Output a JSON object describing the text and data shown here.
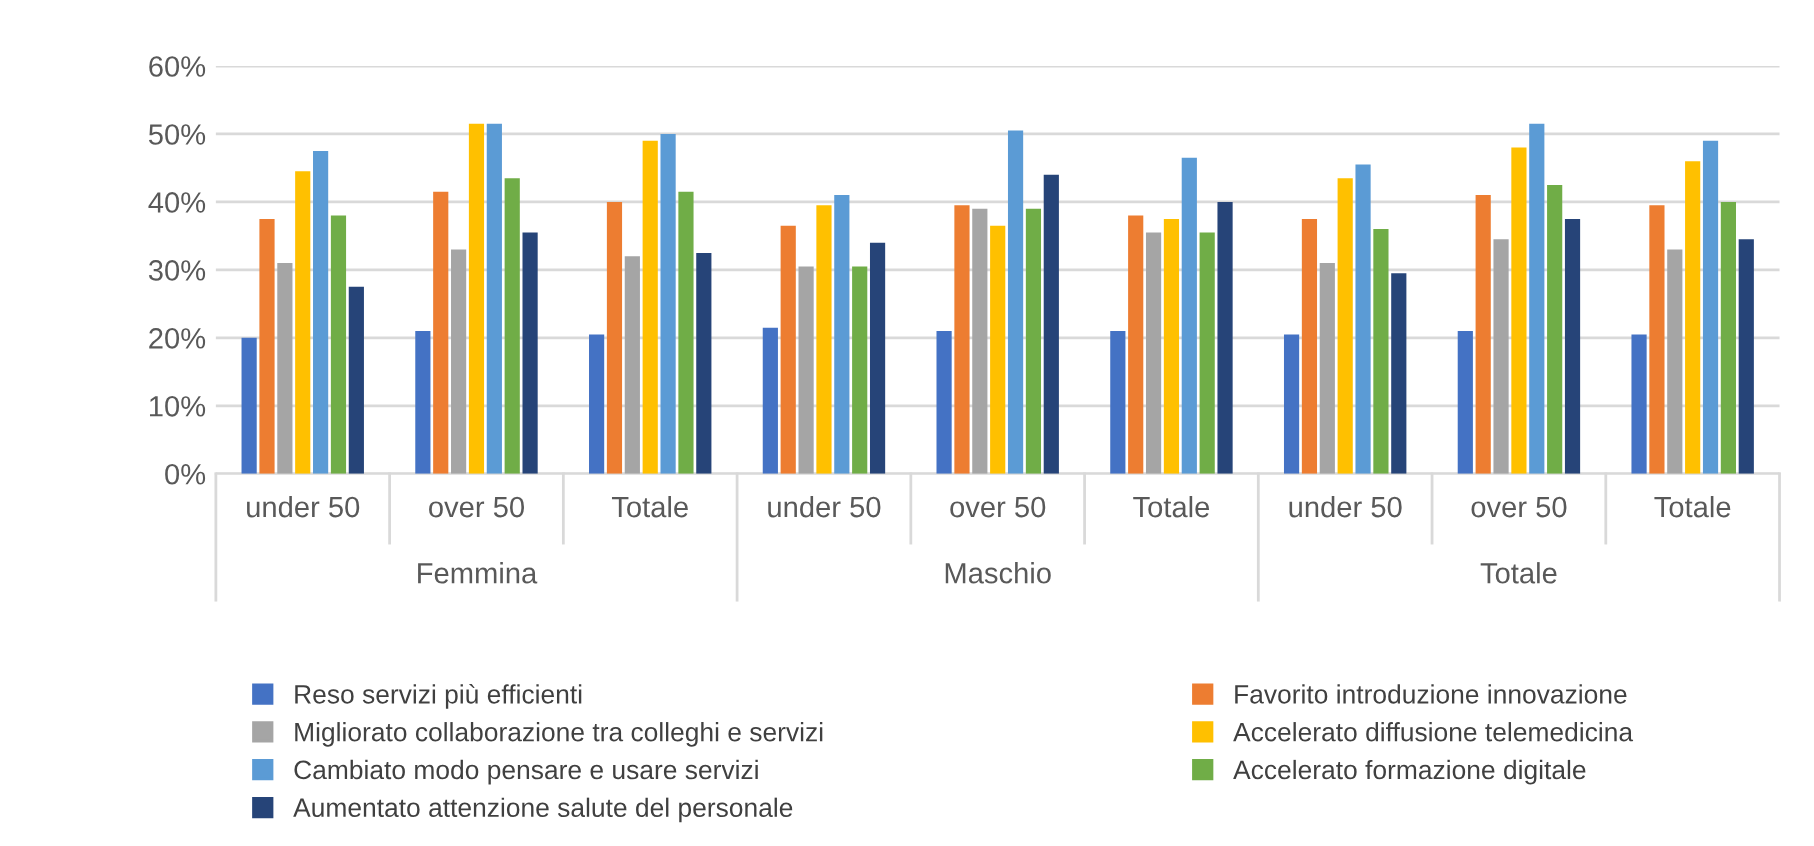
{
  "chart_data": {
    "type": "bar",
    "categories": [
      "under 50",
      "over 50",
      "Totale",
      "under 50",
      "over 50",
      "Totale",
      "under 50",
      "over 50",
      "Totale"
    ],
    "annotations": [
      "Femmina",
      "Maschio",
      "Totale"
    ],
    "series": [
      {
        "name": "Reso servizi più efficienti",
        "color": "#4472c4",
        "values": [
          20,
          21,
          20.5,
          21.5,
          21,
          21,
          20.5,
          21,
          20.5
        ]
      },
      {
        "name": "Favorito introduzione innovazione",
        "color": "#ed7d31",
        "values": [
          37.5,
          41.5,
          40,
          36.5,
          39.5,
          38,
          37.5,
          41,
          39.5
        ]
      },
      {
        "name": "Migliorato collaborazione tra colleghi e servizi",
        "color": "#a5a5a5",
        "values": [
          31,
          33,
          32,
          30.5,
          39,
          35.5,
          31,
          34.5,
          33
        ]
      },
      {
        "name": "Accelerato diffusione telemedicina",
        "color": "#ffc000",
        "values": [
          44.5,
          51.5,
          49,
          39.5,
          36.5,
          37.5,
          43.5,
          48,
          46
        ]
      },
      {
        "name": "Cambiato modo pensare e usare servizi",
        "color": "#5b9bd5",
        "values": [
          47.5,
          51.5,
          50,
          41,
          50.5,
          46.5,
          45.5,
          51.5,
          49
        ]
      },
      {
        "name": "Accelerato formazione digitale",
        "color": "#70ad47",
        "values": [
          38,
          43.5,
          41.5,
          30.5,
          39,
          35.5,
          36,
          42.5,
          40
        ]
      },
      {
        "name": "Aumentato attenzione salute del personale",
        "color": "#264478",
        "values": [
          27.5,
          35.5,
          32.5,
          34,
          44,
          40,
          29.5,
          37.5,
          34.5
        ]
      }
    ],
    "ylim": [
      0,
      60
    ],
    "yticks": [
      {
        "value": 0,
        "label": "0%"
      },
      {
        "value": 10,
        "label": "10%"
      },
      {
        "value": 20,
        "label": "20%"
      },
      {
        "value": 30,
        "label": "30%"
      },
      {
        "value": 40,
        "label": "40%"
      },
      {
        "value": 50,
        "label": "50%"
      },
      {
        "value": 60,
        "label": "60%"
      }
    ],
    "grid": "y",
    "legend": "bottom"
  }
}
